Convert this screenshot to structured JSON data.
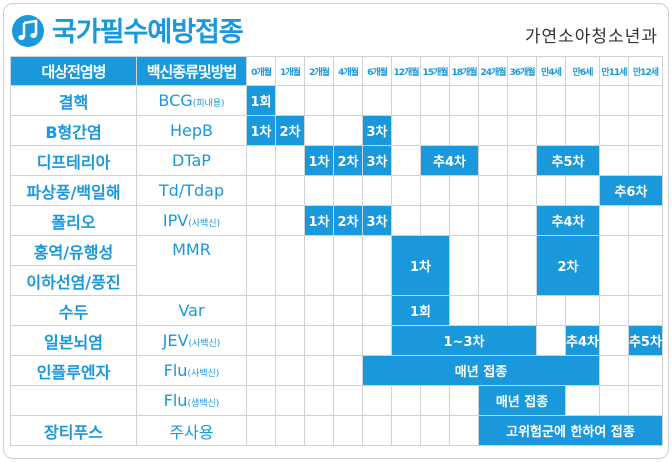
{
  "header": {
    "title": "국가필수예방접종",
    "department": "가연소아청소년과"
  },
  "table": {
    "head_disease": "대상전염병",
    "head_vaccine": "백신종류및방법",
    "ages": [
      "0개월",
      "1개월",
      "2개월",
      "4개월",
      "6개월",
      "12개월",
      "15개월",
      "18개월",
      "24개월",
      "36개월",
      "만4세",
      "만6세",
      "만11세",
      "만12세"
    ],
    "rows": [
      {
        "disease": "결핵",
        "vaccine": "BCG",
        "vaccine_sub": "(피내용)",
        "doses": [
          "1회"
        ]
      },
      {
        "disease": "B형간염",
        "vaccine": "HepB",
        "doses": [
          "1차",
          "2차",
          "3차"
        ]
      },
      {
        "disease": "디프테리아",
        "vaccine": "DTaP",
        "doses": [
          "1차",
          "2차",
          "3차",
          "추4차",
          "추5차"
        ]
      },
      {
        "disease": "파상풍/백일해",
        "vaccine": "Td/Tdap",
        "doses": [
          "추6차"
        ]
      },
      {
        "disease": "폴리오",
        "vaccine": "IPV",
        "vaccine_sub": "(사백신)",
        "doses": [
          "1차",
          "2차",
          "3차",
          "추4차"
        ]
      },
      {
        "disease": "홍역/유행성",
        "vaccine": "MMR",
        "doses": [
          "1차",
          "2차"
        ]
      },
      {
        "disease": "이하선염/풍진"
      },
      {
        "disease": "수두",
        "vaccine": "Var",
        "doses": [
          "1회"
        ]
      },
      {
        "disease": "일본뇌염",
        "vaccine": "JEV",
        "vaccine_sub": "(사백신)",
        "doses": [
          "1~3차",
          "추4차",
          "추5차"
        ]
      },
      {
        "disease": "인플루엔자",
        "vaccine": "Flu",
        "vaccine_sub": "(사백신)",
        "doses": [
          "매년 접종"
        ]
      },
      {
        "vaccine": "Flu",
        "vaccine_sub": "(생백신)",
        "doses": [
          "매년 접종"
        ]
      },
      {
        "disease": "장티푸스",
        "vaccine": "주사용",
        "doses": [
          "고위험군에 한하여 접종"
        ]
      }
    ]
  },
  "colors": {
    "accent": "#1a98dc"
  },
  "icons": {
    "logo": "music-note-icon"
  }
}
